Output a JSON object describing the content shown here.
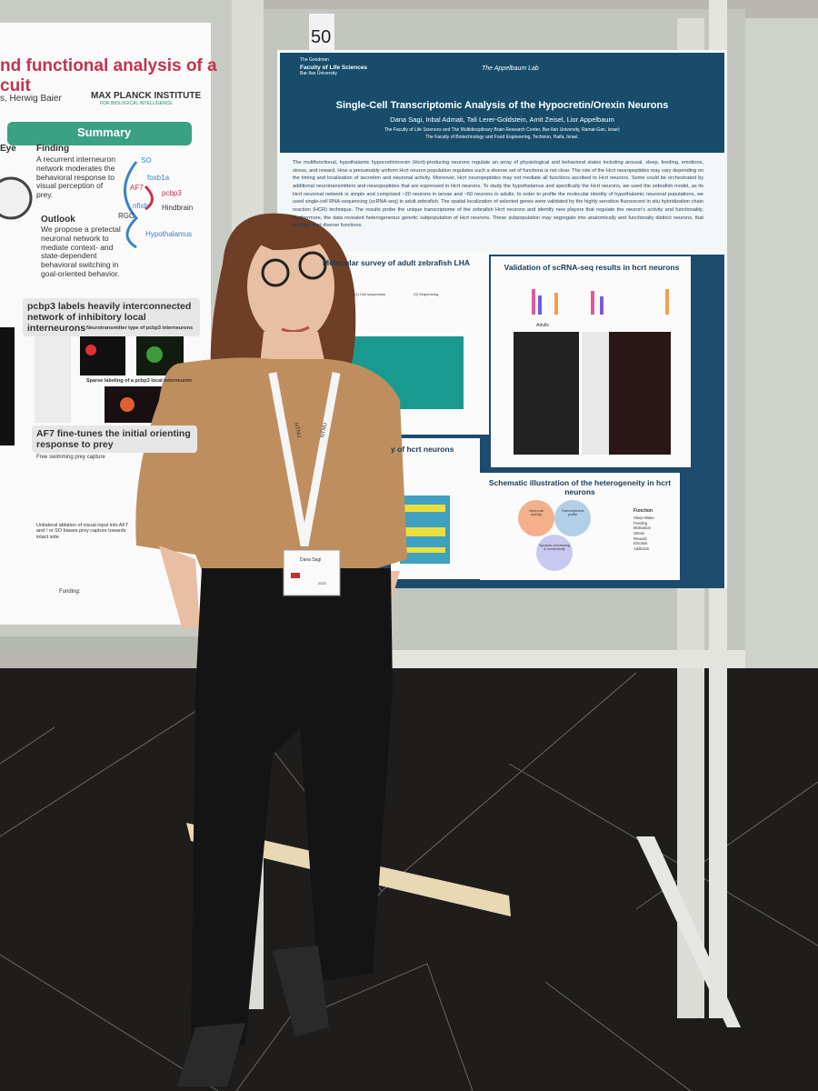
{
  "left_poster": {
    "title_line_1": "nd functional analysis of a",
    "title_line_2": "cuit",
    "authors": "s, Herwig Baier",
    "institute": "MAX PLANCK INSTITUTE",
    "institute_sub": "FOR BIOLOGICAL INTELLIGENCE",
    "summary": "Summary",
    "eye": "Eye",
    "finding_title": "Finding",
    "finding": "A recurrent interneuron network moderates the behavioral response to visual perception of prey.",
    "outlook_title": "Outlook",
    "outlook": "We propose a pretectal neuronal network to mediate context- and state-dependent behavioral switching in goal-oriented behavior.",
    "diagram_labels": [
      "SO",
      "foxb1a",
      "AF7",
      "pcbp3",
      "nfixb",
      "Hindbrain",
      "RGC",
      "Hypothalamus"
    ],
    "section_1": "pcbp3 labels heavily interconnected network of inhibitory local interneurons",
    "section_1_sub": "Neurotransmitter type of pcbp3 interneurons",
    "section_1_sub_2": "Sparse labeling of a pcbp3 local interneuron",
    "section_2": "AF7 fine-tunes the initial orienting response to prey",
    "section_2_sub": "Free swimming prey capture",
    "section_2_note": "Unilateral ablation of visual input into AF7 and / or SO biases prey capture towards intact side",
    "funding": "Funding:"
  },
  "right_poster": {
    "board_number": "50",
    "faculty_line_1": "The Goodman",
    "faculty_line_2": "Faculty of Life Sciences",
    "university": "Bar-Ilan University",
    "lab": "The Appelbaum Lab",
    "title": "Single-Cell Transcriptomic Analysis of the Hypocretin/Orexin Neurons",
    "authors": "Dana Sagi, Inbal Admati, Tali Lerer-Goldstein, Amit Zeisel, Lior Appelbaum",
    "affiliation_1": "The Faculty of Life Sciences and The Multidisciplinary Brain Research Center, Bar-Ilan University, Ramat-Gan, Israel;",
    "affiliation_2": "The Faculty of Biotechnology and Food Engineering, Technion, Haifa, Israel.",
    "abstract": "The multifunctional, hypothalamic hypocretin/orexin (Hcrt)-producing neurons regulate an array of physiological and behavioral states including arousal, sleep, feeding, emotions, stress, and reward. How a presumably uniform Hcrt neuron population regulates such a diverse set of functions is not clear. The role of the Hcrt neuropeptides may vary depending on the timing and localization of secretion and neuronal activity. Moreover, Hcrt neuropeptides may not mediate all functions ascribed to Hcrt neurons. Some could be orchestrated by additional neurotransmitters and neuropeptides that are expressed in Hcrt neurons. To study the hypothalamus and specifically the Hcrt neurons, we used the zebrafish model, as its Hcrt neuronal network is simple and comprised ~20 neurons in larvae and ~60 neurons in adults. In order to profile the molecular identity of hypothalamic neuronal populations, we used single-cell RNA-sequencing (scRNA-seq) in adult zebrafish. The spatial localization of selected genes were validated by the highly sensitive fluorescent in situ hybridization chain reaction (HCR) technique. The results probe the unique transcriptome of the zebrafish Hcrt neurons and identify new players that regulate the neuron's activity and functionality. Furthermore, the data revealed heterogeneous genetic subpopulation of Hcrt neurons. These subpopulation may segregate into anatomically and functionally distinct neurons, that mediate Hcrt diverse functions.",
    "panel_1": "Molecular survey of adult zebrafish LHA",
    "panel_1_steps": [
      "(1) Cell suspension",
      "(3) Sequencing"
    ],
    "panel_2": "Validation of scRNA-seq results in hcrt neurons",
    "panel_2_labels": [
      "Adults"
    ],
    "panel_3": "y of hcrt neurons",
    "panel_4": "Schematic illustration of the heterogeneity in hcrt neurons",
    "panel_4_circles": [
      "Neuronal activity",
      "Transcriptional profile",
      "Synaptic processing & connectivity"
    ],
    "panel_4_function_title": "Function",
    "panel_4_functions": [
      "Sleep-Wake",
      "Feeding",
      "Motivation",
      "Stress",
      "Reward",
      "Emotion",
      "Addiction"
    ]
  },
  "badge": {
    "name": "Dana Sagi",
    "year": "2022"
  },
  "lanyard": "NTNU"
}
